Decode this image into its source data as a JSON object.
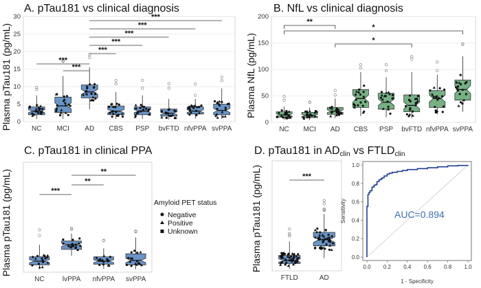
{
  "chart_data": [
    {
      "id": "A",
      "type": "box",
      "title": "A. pTau181 vs clinical diagnosis",
      "ylabel": "Plasma pTau181 (pg/mL)",
      "ylim": [
        0,
        30
      ],
      "yticks": [
        0,
        5,
        10,
        15,
        20,
        25,
        30
      ],
      "categories": [
        "NC",
        "MCI",
        "AD",
        "CBS",
        "PSP",
        "bvFTD",
        "nfvPPA",
        "svPPA"
      ],
      "boxes": [
        {
          "q1": 2.0,
          "median": 3.0,
          "q3": 4.2,
          "lo": 0.8,
          "hi": 7.5
        },
        {
          "q1": 2.6,
          "median": 4.5,
          "q3": 7.0,
          "lo": 0.8,
          "hi": 13.0
        },
        {
          "q1": 6.8,
          "median": 8.5,
          "q3": 10.5,
          "lo": 3.5,
          "hi": 15.5
        },
        {
          "q1": 2.0,
          "median": 3.0,
          "q3": 4.5,
          "lo": 0.8,
          "hi": 8.5
        },
        {
          "q1": 2.0,
          "median": 3.0,
          "q3": 4.2,
          "lo": 0.8,
          "hi": 7.5
        },
        {
          "q1": 1.6,
          "median": 2.4,
          "q3": 3.6,
          "lo": 0.6,
          "hi": 6.5
        },
        {
          "q1": 2.2,
          "median": 3.0,
          "q3": 4.2,
          "lo": 0.9,
          "hi": 6.5
        },
        {
          "q1": 2.0,
          "median": 3.2,
          "q3": 5.0,
          "lo": 0.8,
          "hi": 9.5
        }
      ],
      "comparisons": [
        {
          "from": "NC",
          "to": "AD",
          "label": "***"
        },
        {
          "from": "MCI",
          "to": "AD",
          "label": "***"
        },
        {
          "from": "AD",
          "to": "svPPA",
          "label": "***"
        },
        {
          "from": "AD",
          "to": "nfvPPA",
          "label": "***"
        },
        {
          "from": "AD",
          "to": "bvFTD",
          "label": "***"
        },
        {
          "from": "AD",
          "to": "PSP",
          "label": "***"
        },
        {
          "from": "AD",
          "to": "CBS",
          "label": "***"
        }
      ],
      "box_color": "#4f81bd"
    },
    {
      "id": "B",
      "type": "box",
      "title": "B. NfL vs clinical diagnosis",
      "ylabel": "Plasma NfL (pg/mL)",
      "ylim": [
        0,
        200
      ],
      "yticks": [
        0,
        50,
        100,
        150,
        200
      ],
      "categories": [
        "NC",
        "MCI",
        "AD",
        "CBS",
        "PSP",
        "bvFTD",
        "nfvPPA",
        "svPPA"
      ],
      "boxes": [
        {
          "q1": 10,
          "median": 14,
          "q3": 20,
          "lo": 5,
          "hi": 30
        },
        {
          "q1": 9,
          "median": 13,
          "q3": 19,
          "lo": 4,
          "hi": 28
        },
        {
          "q1": 15,
          "median": 21,
          "q3": 28,
          "lo": 8,
          "hi": 45
        },
        {
          "q1": 28,
          "median": 45,
          "q3": 62,
          "lo": 12,
          "hi": 95
        },
        {
          "q1": 25,
          "median": 38,
          "q3": 55,
          "lo": 10,
          "hi": 85
        },
        {
          "q1": 20,
          "median": 32,
          "q3": 52,
          "lo": 8,
          "hi": 95
        },
        {
          "q1": 28,
          "median": 45,
          "q3": 60,
          "lo": 15,
          "hi": 90
        },
        {
          "q1": 42,
          "median": 62,
          "q3": 80,
          "lo": 20,
          "hi": 125
        }
      ],
      "comparisons": [
        {
          "from": "NC",
          "to": "AD",
          "label": "**"
        },
        {
          "from": "NC",
          "to": "svPPA",
          "label": "*"
        },
        {
          "from": "AD",
          "to": "bvFTD",
          "label": "*"
        }
      ],
      "box_color": "#5ea36e"
    },
    {
      "id": "C",
      "type": "box",
      "title": "C. pTau181 in clinical PPA",
      "ylabel": "Plasma pTau181 (pg/mL)",
      "ylim": [
        0,
        30
      ],
      "categories": [
        "NC",
        "lvPPA",
        "nfvPPA",
        "svPPA"
      ],
      "boxes": [
        {
          "q1": 2.0,
          "median": 3.0,
          "q3": 4.2,
          "lo": 0.8,
          "hi": 7.5
        },
        {
          "q1": 6.2,
          "median": 7.5,
          "q3": 8.5,
          "lo": 4.5,
          "hi": 10.5
        },
        {
          "q1": 2.2,
          "median": 3.0,
          "q3": 4.2,
          "lo": 0.9,
          "hi": 6.5
        },
        {
          "q1": 2.0,
          "median": 3.2,
          "q3": 5.0,
          "lo": 0.8,
          "hi": 9.5
        }
      ],
      "comparisons": [
        {
          "from": "NC",
          "to": "lvPPA",
          "label": "***"
        },
        {
          "from": "lvPPA",
          "to": "nfvPPA",
          "label": "**"
        },
        {
          "from": "lvPPA",
          "to": "svPPA",
          "label": "**"
        }
      ],
      "legend": {
        "title": "Amyloid PET status",
        "entries": [
          "Negative",
          "Positive",
          "Unknown"
        ]
      },
      "box_color": "#4f81bd"
    },
    {
      "id": "D",
      "type": "box",
      "title_main": "D. pTau181 in AD",
      "title_sub1": "clin",
      "title_mid": " vs FTLD",
      "title_sub2": "clin",
      "ylabel": "Plasma pTau181 (pg/mL)",
      "ylim": [
        0,
        30
      ],
      "categories": [
        "FTLD",
        "AD"
      ],
      "boxes": [
        {
          "q1": 2.0,
          "median": 2.8,
          "q3": 4.2,
          "lo": 0.5,
          "hi": 8.0
        },
        {
          "q1": 6.8,
          "median": 8.5,
          "q3": 10.5,
          "lo": 3.5,
          "hi": 15.5
        }
      ],
      "comparisons": [
        {
          "from": "FTLD",
          "to": "AD",
          "label": "***"
        }
      ],
      "box_color": "#4f81bd"
    },
    {
      "id": "ROC",
      "type": "line",
      "xlabel": "1 - Specificity",
      "ylabel": "Sensitivity",
      "xlim": [
        0,
        1
      ],
      "ylim": [
        0,
        1
      ],
      "xticks": [
        "0.0",
        "0.2",
        "0.4",
        "0.6",
        "0.8",
        "1.0"
      ],
      "yticks": [
        "0.0",
        "0.2",
        "0.4",
        "0.6",
        "0.8",
        "1.0"
      ],
      "annotation": "AUC=0.894",
      "x": [
        0,
        0,
        0.01,
        0.02,
        0.03,
        0.05,
        0.05,
        0.07,
        0.09,
        0.1,
        0.12,
        0.14,
        0.15,
        0.17,
        0.2,
        0.22,
        0.25,
        0.3,
        0.35,
        0.4,
        0.5,
        0.6,
        0.7,
        0.8,
        0.9,
        1.0
      ],
      "y": [
        0,
        0.55,
        0.68,
        0.7,
        0.72,
        0.73,
        0.76,
        0.78,
        0.79,
        0.82,
        0.84,
        0.85,
        0.86,
        0.88,
        0.9,
        0.91,
        0.92,
        0.93,
        0.94,
        0.95,
        0.96,
        0.97,
        0.98,
        0.99,
        0.995,
        1.0
      ],
      "line_color": "#1f3f8f"
    }
  ]
}
